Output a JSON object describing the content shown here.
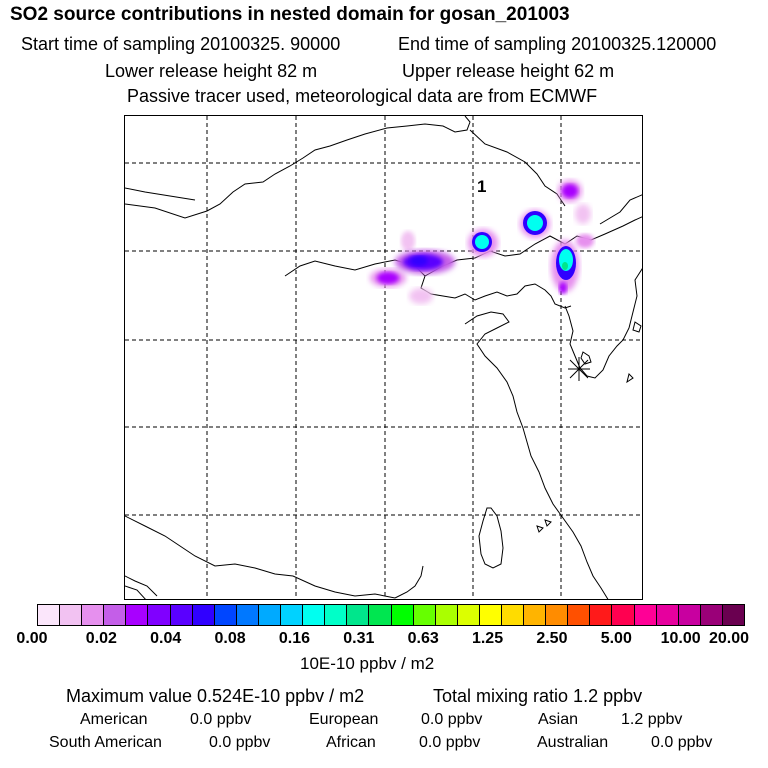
{
  "header": {
    "title": "SO2 source contributions in nested domain for gosan_201003",
    "start_time": "Start time of sampling 20100325. 90000",
    "end_time": "End time of sampling 20100325.120000",
    "lower_release": "Lower release height   82 m",
    "upper_release": "Upper release height   62 m",
    "tracer_note": "Passive tracer used, meteorological data are from ECMWF"
  },
  "map": {
    "marker_label": "1",
    "receptor": "gosan",
    "plumes": [
      {
        "id": "plume-beijing-west",
        "level": "0.08-0.16"
      },
      {
        "id": "plume-beijing-east",
        "level": "0.31"
      },
      {
        "id": "plume-tianjin",
        "level": "0.16"
      },
      {
        "id": "plume-liaoning",
        "level": "0.16"
      },
      {
        "id": "plume-northeast",
        "level": "0.04"
      },
      {
        "id": "plume-dalian",
        "level": "0.31"
      }
    ]
  },
  "colorbar": {
    "colors": [
      "#fbe6fb",
      "#f2c2f2",
      "#e690ee",
      "#c45ee8",
      "#a800ff",
      "#8000ff",
      "#5a00ff",
      "#3000ff",
      "#0046ff",
      "#0078ff",
      "#00aaff",
      "#00d2ff",
      "#00fff0",
      "#00ffc8",
      "#00e68c",
      "#00e650",
      "#00ff00",
      "#66ff00",
      "#aaff00",
      "#dcff00",
      "#ffff00",
      "#ffdc00",
      "#ffb400",
      "#ff8c00",
      "#ff5000",
      "#ff1a1a",
      "#ff0050",
      "#ff0096",
      "#e6009e",
      "#c800a0",
      "#9a0078",
      "#6a0050"
    ],
    "ticks": [
      "0.00",
      "0.02",
      "0.04",
      "0.08",
      "0.16",
      "0.31",
      "0.63",
      "1.25",
      "2.50",
      "5.00",
      "10.00",
      "20.00"
    ],
    "units": "10E-10 ppbv / m2"
  },
  "summary": {
    "maximum": "Maximum value  0.524E-10 ppbv / m2",
    "total": "Total mixing ratio        1.2 ppbv",
    "regions": [
      {
        "name": "American",
        "value": "0.0 ppbv"
      },
      {
        "name": "European",
        "value": "0.0 ppbv"
      },
      {
        "name": "Asian",
        "value": "1.2 ppbv"
      },
      {
        "name": "South American",
        "value": "0.0 ppbv"
      },
      {
        "name": "African",
        "value": "0.0 ppbv"
      },
      {
        "name": "Australian",
        "value": "0.0 ppbv"
      }
    ]
  }
}
